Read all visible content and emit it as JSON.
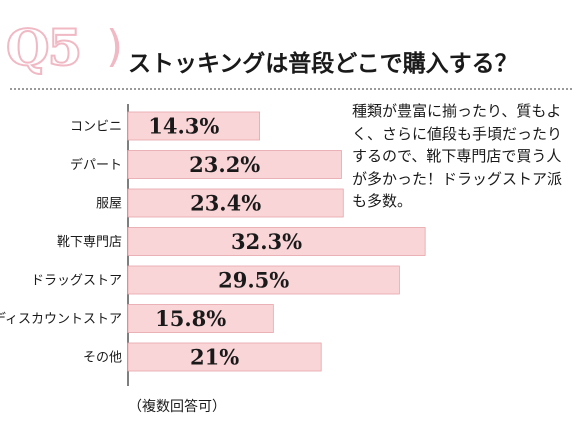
{
  "header": {
    "badge": "Q5",
    "badge_paren": ")",
    "title": "ストッキングは普段どこで購入する？"
  },
  "note": "種類が豊富に揃ったり、質もよく、さらに値段も手頃だったりするので、靴下専門店で買う人が多かった！ドラッグストア派も多数。",
  "footnote": "（複数回答可）",
  "colors": {
    "bar_fill": "#f9d5d7",
    "bar_stroke": "#e7a4ab",
    "axis": "#555555",
    "badge": "#f0b9c4"
  },
  "chart_data": {
    "type": "bar",
    "orientation": "horizontal",
    "categories": [
      "コンビニ",
      "デパート",
      "服屋",
      "靴下専門店",
      "ドラッグストア",
      "ディスカウントストア",
      "その他"
    ],
    "values": [
      14.3,
      23.2,
      23.4,
      32.3,
      29.5,
      15.8,
      21
    ],
    "value_labels": [
      "14.3%",
      "23.2%",
      "23.4%",
      "32.3%",
      "29.5%",
      "15.8%",
      "21%"
    ],
    "unit": "%"
  }
}
